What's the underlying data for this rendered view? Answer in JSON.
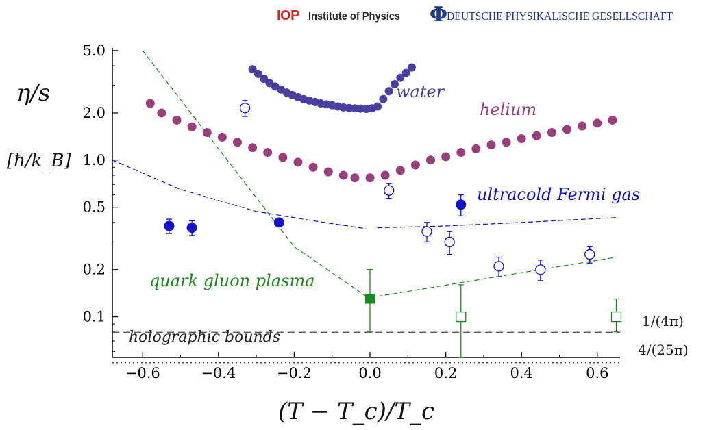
{
  "header": {
    "iop_logo": "IOP",
    "iop_name": "Institute of Physics",
    "dpg_logo": "Φ",
    "dpg_name": "DEUTSCHE PHYSIKALISCHE GESELLSCHAFT"
  },
  "chart_data": {
    "type": "scatter",
    "xlabel": "(T − T_c)/T_c",
    "ylabel": "η/s",
    "yunit": "[ħ/k_B]",
    "xlim": [
      -0.68,
      0.66
    ],
    "ylim": [
      0.055,
      5.2
    ],
    "yscale": "log",
    "grid": false,
    "xticks": [
      -0.6,
      -0.4,
      -0.2,
      0.0,
      0.2,
      0.4,
      0.6
    ],
    "xtick_labels": [
      "−0.6",
      "−0.4",
      "−0.2",
      "0.0",
      "0.2",
      "0.4",
      "0.6"
    ],
    "yticks": [
      0.1,
      0.2,
      0.5,
      1.0,
      2.0,
      5.0
    ],
    "ytick_labels": [
      "0.1",
      "0.2",
      "0.5",
      "1.0",
      "2.0",
      "5.0"
    ],
    "annotations": {
      "water": "water",
      "helium": "helium",
      "fermi": "ultracold Fermi gas",
      "qgp": "quark gluon plasma",
      "holo": "holographic bounds",
      "bound1": "1/(4π)",
      "bound2": "4/(25π)"
    },
    "colors": {
      "water": "#4a3fa0",
      "helium": "#9a3f7e",
      "fermi": "#1010c8",
      "qgp": "#1a8c1a",
      "bound": "#444444"
    },
    "series": [
      {
        "name": "water",
        "points": [
          [
            -0.31,
            3.8
          ],
          [
            -0.295,
            3.55
          ],
          [
            -0.28,
            3.3
          ],
          [
            -0.265,
            3.1
          ],
          [
            -0.25,
            2.95
          ],
          [
            -0.235,
            2.82
          ],
          [
            -0.22,
            2.7
          ],
          [
            -0.205,
            2.6
          ],
          [
            -0.19,
            2.52
          ],
          [
            -0.175,
            2.45
          ],
          [
            -0.16,
            2.4
          ],
          [
            -0.145,
            2.35
          ],
          [
            -0.13,
            2.3
          ],
          [
            -0.115,
            2.27
          ],
          [
            -0.1,
            2.24
          ],
          [
            -0.085,
            2.2
          ],
          [
            -0.07,
            2.17
          ],
          [
            -0.055,
            2.15
          ],
          [
            -0.04,
            2.14
          ],
          [
            -0.025,
            2.13
          ],
          [
            -0.01,
            2.12
          ],
          [
            0.005,
            2.14
          ],
          [
            0.02,
            2.2
          ],
          [
            0.035,
            2.45
          ],
          [
            0.05,
            2.75
          ],
          [
            0.065,
            3.05
          ],
          [
            0.08,
            3.35
          ],
          [
            0.095,
            3.6
          ],
          [
            0.11,
            3.9
          ]
        ]
      },
      {
        "name": "helium",
        "points": [
          [
            -0.58,
            2.3
          ],
          [
            -0.55,
            2.0
          ],
          [
            -0.51,
            1.8
          ],
          [
            -0.47,
            1.63
          ],
          [
            -0.43,
            1.5
          ],
          [
            -0.39,
            1.4
          ],
          [
            -0.35,
            1.3
          ],
          [
            -0.31,
            1.2
          ],
          [
            -0.27,
            1.12
          ],
          [
            -0.23,
            1.04
          ],
          [
            -0.19,
            0.97
          ],
          [
            -0.15,
            0.9
          ],
          [
            -0.11,
            0.84
          ],
          [
            -0.07,
            0.8
          ],
          [
            -0.04,
            0.77
          ],
          [
            0.0,
            0.77
          ],
          [
            0.04,
            0.8
          ],
          [
            0.08,
            0.86
          ],
          [
            0.12,
            0.93
          ],
          [
            0.16,
            1.0
          ],
          [
            0.2,
            1.05
          ],
          [
            0.24,
            1.12
          ],
          [
            0.28,
            1.18
          ],
          [
            0.32,
            1.25
          ],
          [
            0.36,
            1.3
          ],
          [
            0.4,
            1.37
          ],
          [
            0.44,
            1.43
          ],
          [
            0.48,
            1.5
          ],
          [
            0.52,
            1.57
          ],
          [
            0.56,
            1.65
          ],
          [
            0.6,
            1.72
          ],
          [
            0.64,
            1.8
          ]
        ]
      },
      {
        "name": "fermi_filled",
        "points": [
          [
            -0.53,
            0.38
          ],
          [
            -0.47,
            0.37
          ],
          [
            -0.24,
            0.4
          ],
          [
            0.24,
            0.52
          ]
        ],
        "errors": [
          0.04,
          0.04,
          0.02,
          0.08
        ]
      },
      {
        "name": "fermi_open",
        "points": [
          [
            -0.33,
            2.15
          ],
          [
            0.05,
            0.64
          ],
          [
            0.15,
            0.35
          ],
          [
            0.21,
            0.3
          ],
          [
            0.34,
            0.21
          ],
          [
            0.45,
            0.2
          ],
          [
            0.58,
            0.25
          ]
        ],
        "errors": [
          0.25,
          0.07,
          0.05,
          0.05,
          0.03,
          0.03,
          0.03
        ]
      },
      {
        "name": "qgp_filled",
        "points": [
          [
            0.0,
            0.13
          ]
        ],
        "err_low": [
          0.08
        ],
        "err_high": [
          0.2
        ]
      },
      {
        "name": "qgp_open",
        "points": [
          [
            0.24,
            0.1
          ],
          [
            0.65,
            0.1
          ]
        ],
        "err_low": [
          0.055,
          0.08
        ],
        "err_high": [
          0.16,
          0.13
        ]
      },
      {
        "name": "fermi_fit",
        "points": [
          [
            -0.68,
            1.0
          ],
          [
            -0.5,
            0.65
          ],
          [
            -0.3,
            0.47
          ],
          [
            -0.15,
            0.41
          ],
          [
            -0.01,
            0.365
          ],
          [
            0.02,
            0.37
          ],
          [
            0.2,
            0.38
          ],
          [
            0.4,
            0.4
          ],
          [
            0.65,
            0.43
          ]
        ]
      },
      {
        "name": "qgp_fit",
        "points": [
          [
            -0.6,
            5.0
          ],
          [
            -0.2,
            0.28
          ],
          [
            -0.01,
            0.135
          ],
          [
            0.02,
            0.135
          ],
          [
            0.65,
            0.24
          ]
        ]
      },
      {
        "name": "bound_kss",
        "value": 0.0796
      },
      {
        "name": "bound_gb",
        "value": 0.0509
      }
    ]
  }
}
